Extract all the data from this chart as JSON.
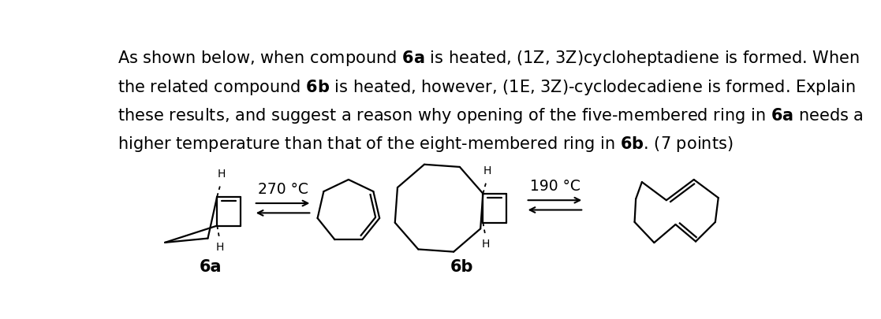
{
  "bg_color": "#ffffff",
  "text_color": "#000000",
  "font_size_text": 15.0,
  "font_size_label": 15,
  "font_size_temp": 13.5,
  "label_6a": "6a",
  "label_6b": "6b",
  "temp_6a": "270 °C",
  "temp_6b": "190 °C",
  "lw": 1.6
}
